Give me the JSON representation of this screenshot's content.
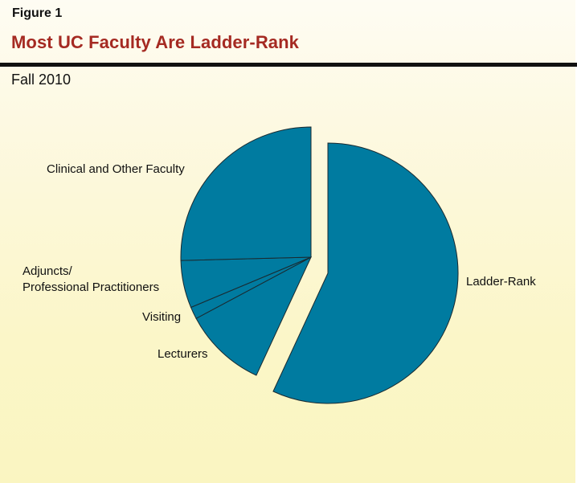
{
  "header": {
    "figure_label": "Figure 1",
    "title": "Most UC Faculty Are Ladder-Rank",
    "subtitle": "Fall 2010"
  },
  "colors": {
    "title": "#a52a22",
    "slice_fill": "#007ba0",
    "slice_stroke": "#1a2a30",
    "background_top": "#fefcf3",
    "background_bottom": "#faf5c1"
  },
  "chart_data": {
    "type": "pie",
    "title": "Most UC Faculty Are Ladder-Rank",
    "subtitle": "Fall 2010",
    "categories": [
      "Ladder-Rank",
      "Lecturers",
      "Visiting",
      "Adjuncts/ Professional Practitioners",
      "Clinical and Other Faculty"
    ],
    "values": [
      56.9,
      10.3,
      1.5,
      5.9,
      25.4
    ],
    "unit": "percent of faculty (estimated from slice angles)",
    "exploded": [
      "Ladder-Rank"
    ],
    "labels": {
      "ladder_rank": "Ladder-Rank",
      "lecturers": "Lecturers",
      "visiting": "Visiting",
      "adjuncts_line1": "Adjuncts/",
      "adjuncts_line2": "Professional Practitioners",
      "clinical": "Clinical and Other Faculty"
    }
  }
}
